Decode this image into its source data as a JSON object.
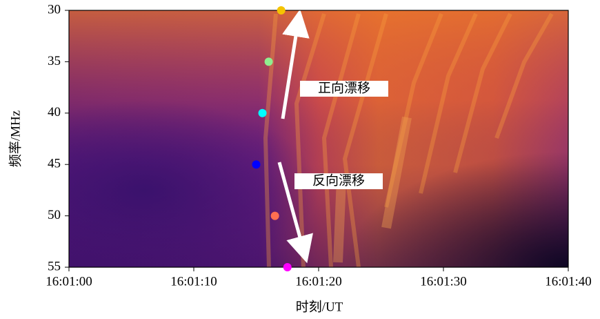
{
  "chart_data": {
    "type": "scatter",
    "xlabel": "时刻/UT",
    "ylabel": "频率/MHz",
    "x": [
      17,
      16,
      15.5,
      15,
      16.5,
      17.5
    ],
    "y": [
      30,
      35,
      40,
      45,
      50,
      55
    ],
    "colors": [
      "#f5c400",
      "#90ee90",
      "#00ffff",
      "#0000ff",
      "#ff7050",
      "#ff00ff"
    ],
    "xlim": [
      0,
      40
    ],
    "xticks": [
      {
        "value": 0,
        "label": "16:01:00"
      },
      {
        "value": 10,
        "label": "16:01:10"
      },
      {
        "value": 20,
        "label": "16:01:20"
      },
      {
        "value": 30,
        "label": "16:01:30"
      },
      {
        "value": 40,
        "label": "16:01:40"
      }
    ],
    "ylim": [
      55,
      30
    ],
    "yticks": [
      30,
      35,
      40,
      45,
      50,
      55
    ],
    "annotations": [
      "正向漂移",
      "反向漂移"
    ]
  }
}
